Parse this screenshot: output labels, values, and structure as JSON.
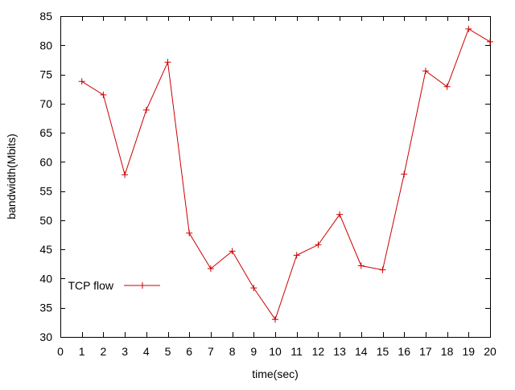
{
  "chart_data": {
    "type": "line",
    "title": "",
    "xlabel": "time(sec)",
    "ylabel": "bandwidth(Mbits)",
    "xlim": [
      0,
      20
    ],
    "ylim": [
      30,
      85
    ],
    "xticks": [
      0,
      1,
      2,
      3,
      4,
      5,
      6,
      7,
      8,
      9,
      10,
      11,
      12,
      13,
      14,
      15,
      16,
      17,
      18,
      19,
      20
    ],
    "yticks": [
      30,
      35,
      40,
      45,
      50,
      55,
      60,
      65,
      70,
      75,
      80,
      85
    ],
    "grid": false,
    "legend_position": "bottom-left",
    "series": [
      {
        "name": "TCP flow",
        "color": "#cc0000",
        "marker": "plus",
        "x": [
          1,
          2,
          3,
          4,
          5,
          6,
          7,
          8,
          9,
          10,
          11,
          12,
          13,
          14,
          15,
          16,
          17,
          18,
          19,
          20
        ],
        "y": [
          73.8,
          71.5,
          57.8,
          68.9,
          77.1,
          47.8,
          41.7,
          44.7,
          38.4,
          33.0,
          44.0,
          45.8,
          51.0,
          42.2,
          41.5,
          57.9,
          75.6,
          72.9,
          82.8,
          80.6
        ]
      }
    ]
  }
}
